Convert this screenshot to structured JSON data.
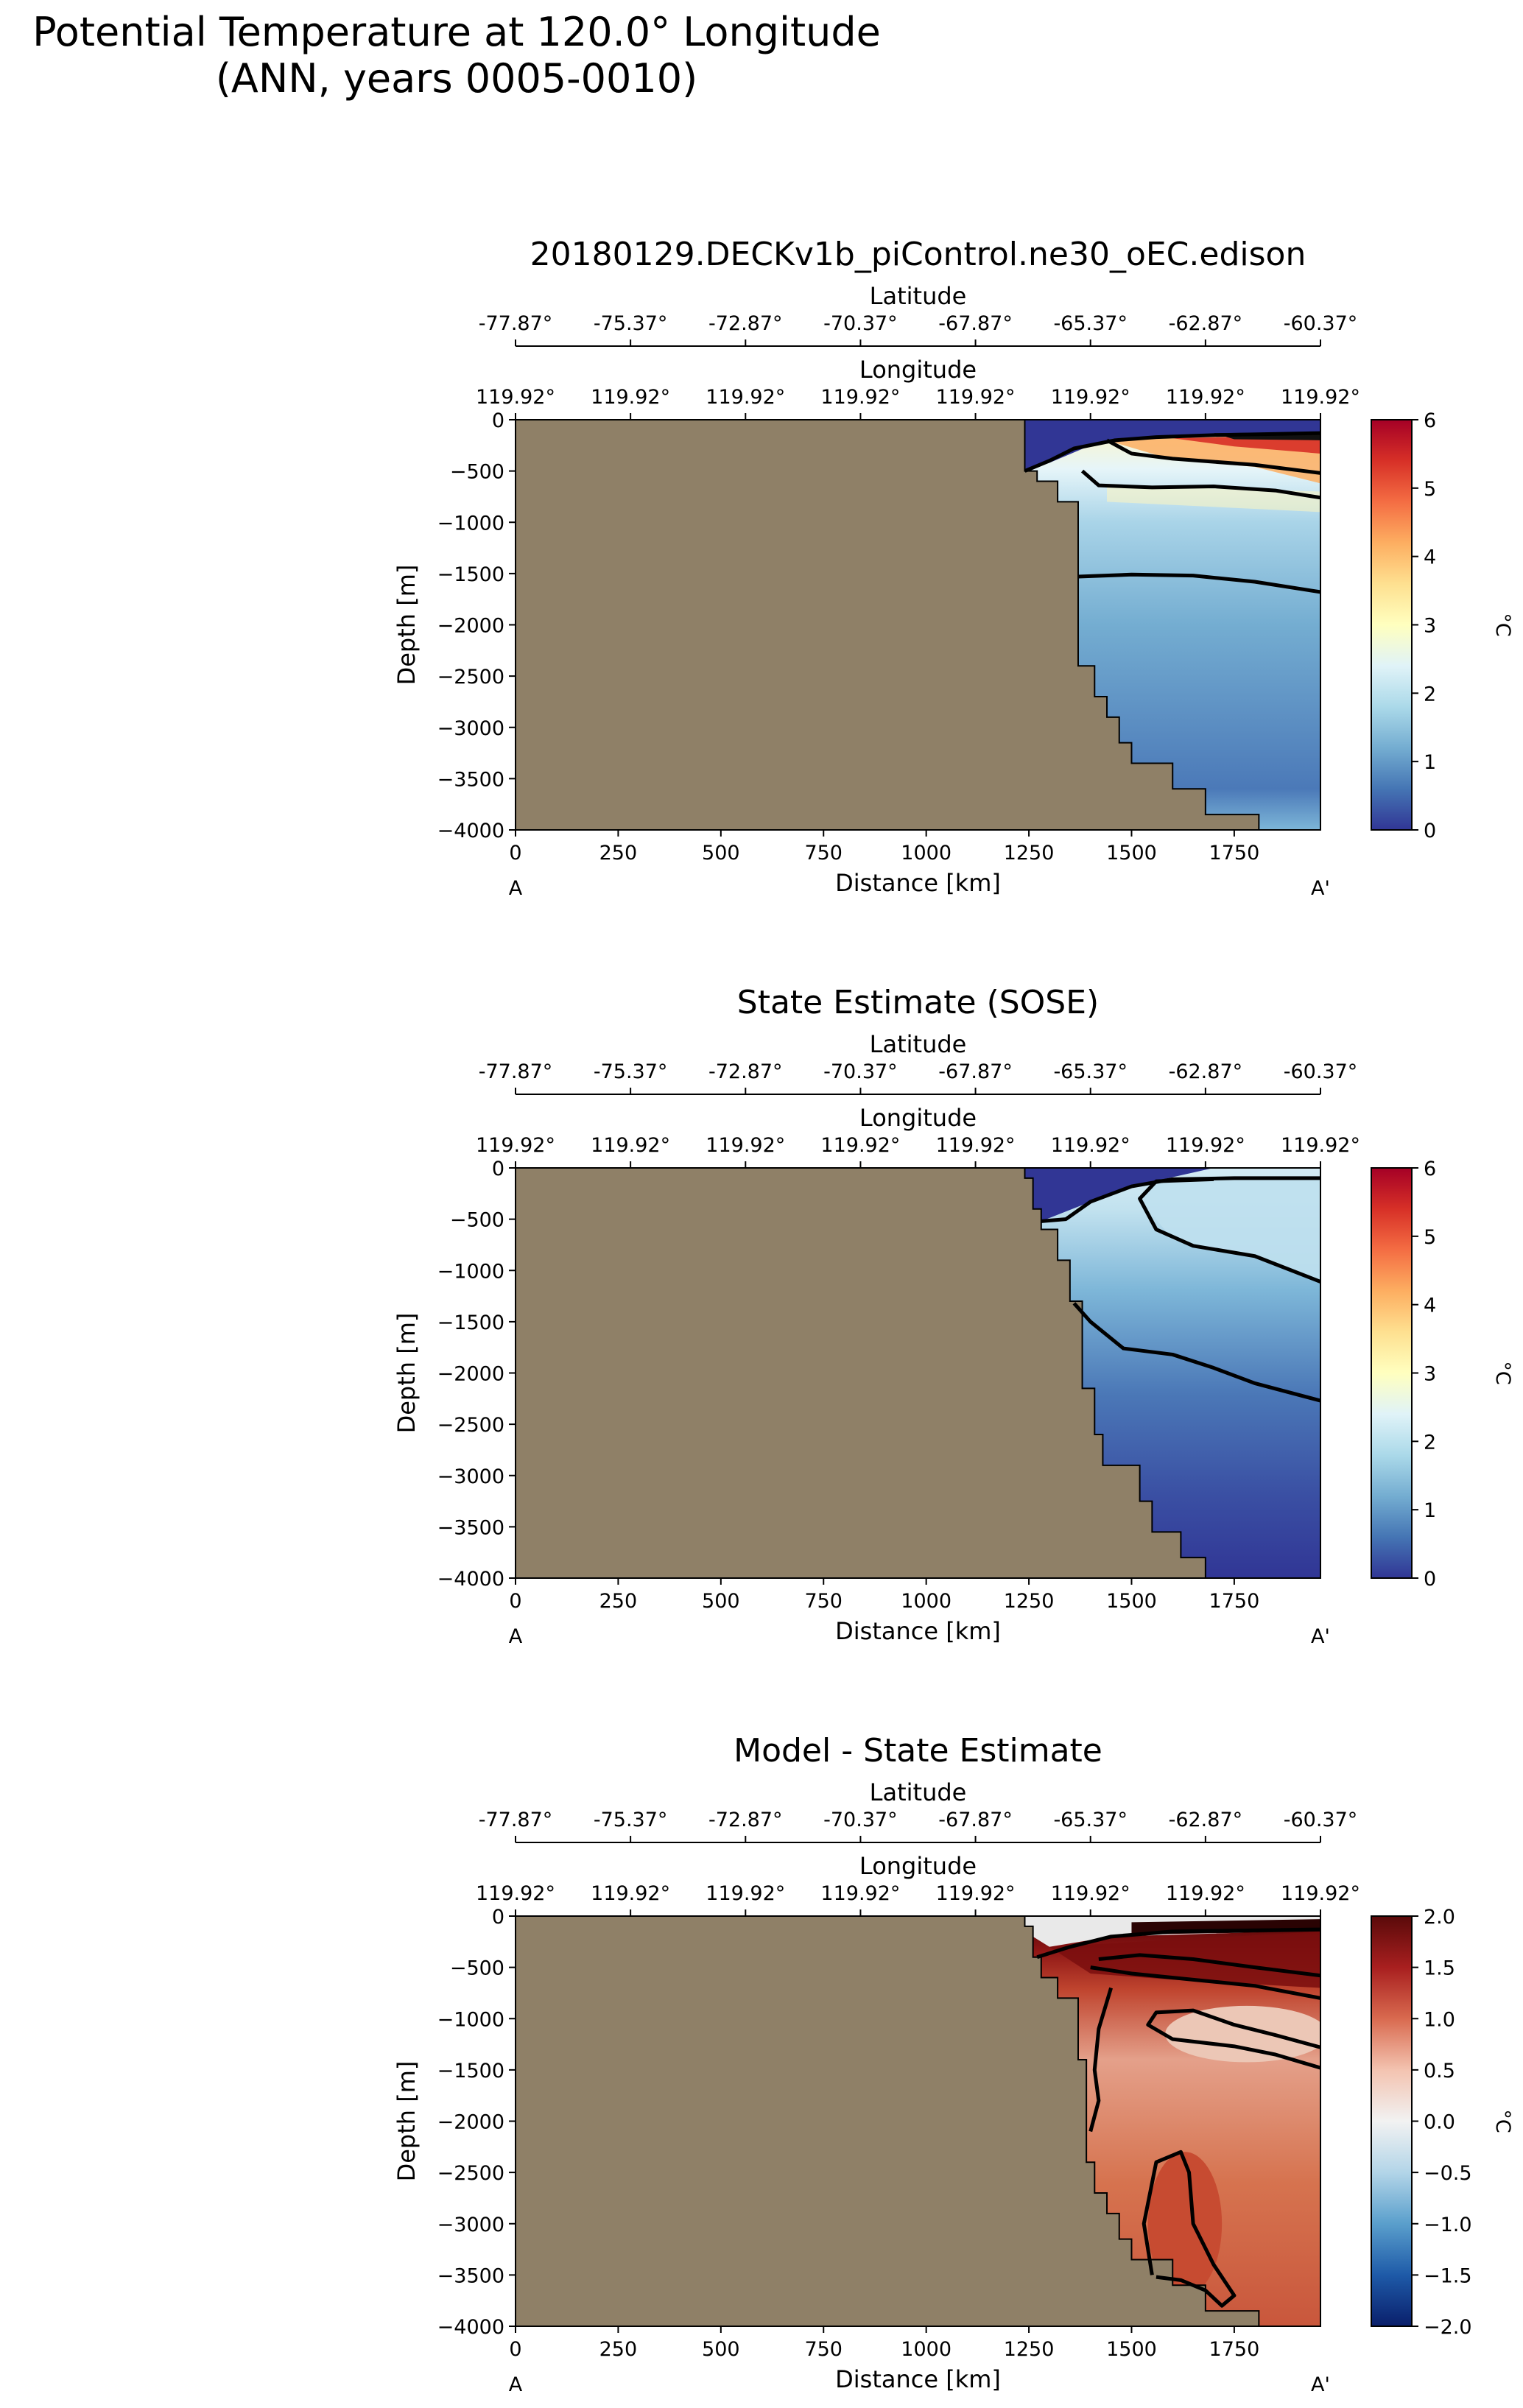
{
  "figure": {
    "title_line1": "Potential Temperature at 120.0° Longitude",
    "title_line2": "(ANN, years 0005-0010)"
  },
  "colors": {
    "land": "#8f8067",
    "contour": "#000000",
    "seq_cmap": [
      "#313695",
      "#4575b4",
      "#74add1",
      "#abd9e9",
      "#e0f3f8",
      "#ffffbf",
      "#fee090",
      "#fdae61",
      "#f46d43",
      "#d73027",
      "#a50026"
    ],
    "div_cmap": [
      "#0a1f6b",
      "#1e5aa8",
      "#5a9fcc",
      "#b3d5e8",
      "#f2f2f2",
      "#f3c3b0",
      "#d96a4f",
      "#a81f1f",
      "#5a0a0a"
    ]
  },
  "chart_data": [
    {
      "type": "heatmap",
      "panel": "model",
      "title": "20180129.DECKv1b_piControl.ne30_oEC.edison",
      "xlabel": "Distance [km]",
      "ylabel": "Depth [m]",
      "top_axis_label_lat": "Latitude",
      "top_axis_label_lon": "Longitude",
      "xlim": [
        0,
        1960
      ],
      "ylim": [
        -4000,
        0
      ],
      "xticks": [
        "0",
        "250",
        "500",
        "750",
        "1000",
        "1250",
        "1500",
        "1750"
      ],
      "yticks": [
        "0",
        "−500",
        "−1000",
        "−1500",
        "−2000",
        "−2500",
        "−3000",
        "−3500",
        "−4000"
      ],
      "lat_ticks": [
        "-77.87°",
        "-75.37°",
        "-72.87°",
        "-70.37°",
        "-67.87°",
        "-65.37°",
        "-62.87°",
        "-60.37°"
      ],
      "lon_ticks": [
        "119.92°",
        "119.92°",
        "119.92°",
        "119.92°",
        "119.92°",
        "119.92°",
        "119.92°",
        "119.92°"
      ],
      "endpoint_left": "A",
      "endpoint_right": "A'",
      "colorbar": {
        "label": "°C",
        "range": [
          0,
          6
        ],
        "ticks": [
          "0",
          "1",
          "2",
          "3",
          "4",
          "5",
          "6"
        ],
        "cmap": "seq"
      },
      "bathymetry_km_m": [
        [
          1240,
          0
        ],
        [
          1240,
          -500
        ],
        [
          1270,
          -500
        ],
        [
          1270,
          -600
        ],
        [
          1320,
          -600
        ],
        [
          1320,
          -800
        ],
        [
          1370,
          -800
        ],
        [
          1370,
          -2400
        ],
        [
          1410,
          -2400
        ],
        [
          1410,
          -2700
        ],
        [
          1440,
          -2700
        ],
        [
          1440,
          -2900
        ],
        [
          1470,
          -2900
        ],
        [
          1470,
          -3150
        ],
        [
          1500,
          -3150
        ],
        [
          1500,
          -3350
        ],
        [
          1600,
          -3350
        ],
        [
          1600,
          -3600
        ],
        [
          1680,
          -3600
        ],
        [
          1680,
          -3850
        ],
        [
          1810,
          -3850
        ],
        [
          1810,
          -4000
        ]
      ],
      "contour_depths_m": [
        [
          [
            1240,
            -500
          ],
          [
            1300,
            -400
          ],
          [
            1360,
            -280
          ],
          [
            1460,
            -200
          ],
          [
            1560,
            -170
          ],
          [
            1700,
            -150
          ],
          [
            1960,
            -130
          ]
        ],
        [
          [
            1440,
            -200
          ],
          [
            1500,
            -330
          ],
          [
            1600,
            -380
          ],
          [
            1800,
            -440
          ],
          [
            1960,
            -520
          ]
        ],
        [
          [
            1380,
            -500
          ],
          [
            1420,
            -640
          ],
          [
            1550,
            -660
          ],
          [
            1700,
            -650
          ],
          [
            1850,
            -690
          ],
          [
            1960,
            -760
          ]
        ],
        [
          [
            1370,
            -1530
          ],
          [
            1500,
            -1510
          ],
          [
            1650,
            -1520
          ],
          [
            1800,
            -1580
          ],
          [
            1960,
            -1680
          ]
        ]
      ],
      "field_notes": "Cold (~0-0.5 °C) surface layer above ~400 m near shelf; warm 3-6 °C core at 150-600 m offshore; ~2 °C at 1000 m; ~1 °C deep"
    },
    {
      "type": "heatmap",
      "panel": "obs",
      "title": "State Estimate (SOSE)",
      "xlabel": "Distance [km]",
      "ylabel": "Depth [m]",
      "top_axis_label_lat": "Latitude",
      "top_axis_label_lon": "Longitude",
      "xlim": [
        0,
        1960
      ],
      "ylim": [
        -4000,
        0
      ],
      "xticks": [
        "0",
        "250",
        "500",
        "750",
        "1000",
        "1250",
        "1500",
        "1750"
      ],
      "yticks": [
        "0",
        "−500",
        "−1000",
        "−1500",
        "−2000",
        "−2500",
        "−3000",
        "−3500",
        "−4000"
      ],
      "lat_ticks": [
        "-77.87°",
        "-75.37°",
        "-72.87°",
        "-70.37°",
        "-67.87°",
        "-65.37°",
        "-62.87°",
        "-60.37°"
      ],
      "lon_ticks": [
        "119.92°",
        "119.92°",
        "119.92°",
        "119.92°",
        "119.92°",
        "119.92°",
        "119.92°",
        "119.92°"
      ],
      "endpoint_left": "A",
      "endpoint_right": "A'",
      "colorbar": {
        "label": "°C",
        "range": [
          0,
          6
        ],
        "ticks": [
          "0",
          "1",
          "2",
          "3",
          "4",
          "5",
          "6"
        ],
        "cmap": "seq"
      },
      "bathymetry_km_m": [
        [
          1240,
          0
        ],
        [
          1240,
          -100
        ],
        [
          1260,
          -100
        ],
        [
          1260,
          -400
        ],
        [
          1280,
          -400
        ],
        [
          1280,
          -600
        ],
        [
          1320,
          -600
        ],
        [
          1320,
          -900
        ],
        [
          1350,
          -900
        ],
        [
          1350,
          -1300
        ],
        [
          1380,
          -1300
        ],
        [
          1380,
          -2150
        ],
        [
          1410,
          -2150
        ],
        [
          1410,
          -2600
        ],
        [
          1430,
          -2600
        ],
        [
          1430,
          -2900
        ],
        [
          1520,
          -2900
        ],
        [
          1520,
          -3250
        ],
        [
          1550,
          -3250
        ],
        [
          1550,
          -3550
        ],
        [
          1620,
          -3550
        ],
        [
          1620,
          -3800
        ],
        [
          1680,
          -3800
        ],
        [
          1680,
          -4000
        ]
      ],
      "contour_depths_m": [
        [
          [
            1280,
            -520
          ],
          [
            1340,
            -500
          ],
          [
            1400,
            -330
          ],
          [
            1500,
            -180
          ],
          [
            1600,
            -110
          ],
          [
            1750,
            -100
          ],
          [
            1960,
            -100
          ]
        ],
        [
          [
            1700,
            -110
          ],
          [
            1560,
            -130
          ],
          [
            1520,
            -300
          ],
          [
            1560,
            -600
          ],
          [
            1650,
            -760
          ],
          [
            1800,
            -860
          ],
          [
            1960,
            -1110
          ]
        ],
        [
          [
            1360,
            -1320
          ],
          [
            1400,
            -1500
          ],
          [
            1480,
            -1760
          ],
          [
            1600,
            -1820
          ],
          [
            1700,
            -1950
          ],
          [
            1800,
            -2100
          ],
          [
            1960,
            -2270
          ]
        ]
      ],
      "field_notes": "Cold shelf water (<0.5 °C) near slope; ~1.5-2 °C core 100-800 m offshore; cooling below to ~0 °C at depth"
    },
    {
      "type": "heatmap",
      "panel": "diff",
      "title": "Model - State Estimate",
      "xlabel": "Distance [km]",
      "ylabel": "Depth [m]",
      "top_axis_label_lat": "Latitude",
      "top_axis_label_lon": "Longitude",
      "xlim": [
        0,
        1960
      ],
      "ylim": [
        -4000,
        0
      ],
      "xticks": [
        "0",
        "250",
        "500",
        "750",
        "1000",
        "1250",
        "1500",
        "1750"
      ],
      "yticks": [
        "0",
        "−500",
        "−1000",
        "−1500",
        "−2000",
        "−2500",
        "−3000",
        "−3500",
        "−4000"
      ],
      "lat_ticks": [
        "-77.87°",
        "-75.37°",
        "-72.87°",
        "-70.37°",
        "-67.87°",
        "-65.37°",
        "-62.87°",
        "-60.37°"
      ],
      "lon_ticks": [
        "119.92°",
        "119.92°",
        "119.92°",
        "119.92°",
        "119.92°",
        "119.92°",
        "119.92°",
        "119.92°"
      ],
      "endpoint_left": "A",
      "endpoint_right": "A'",
      "colorbar": {
        "label": "°C",
        "range": [
          -2,
          2
        ],
        "ticks": [
          "2.0",
          "1.5",
          "1.0",
          "0.5",
          "0.0",
          "−0.5",
          "−1.0",
          "−1.5",
          "−2.0"
        ],
        "cmap": "div"
      },
      "bathymetry_km_m": [
        [
          1240,
          0
        ],
        [
          1240,
          -100
        ],
        [
          1260,
          -100
        ],
        [
          1260,
          -400
        ],
        [
          1280,
          -400
        ],
        [
          1280,
          -600
        ],
        [
          1320,
          -600
        ],
        [
          1320,
          -800
        ],
        [
          1370,
          -800
        ],
        [
          1370,
          -1400
        ],
        [
          1390,
          -1400
        ],
        [
          1390,
          -2400
        ],
        [
          1410,
          -2400
        ],
        [
          1410,
          -2700
        ],
        [
          1440,
          -2700
        ],
        [
          1440,
          -2900
        ],
        [
          1470,
          -2900
        ],
        [
          1470,
          -3150
        ],
        [
          1500,
          -3150
        ],
        [
          1500,
          -3350
        ],
        [
          1600,
          -3350
        ],
        [
          1600,
          -3600
        ],
        [
          1680,
          -3600
        ],
        [
          1680,
          -3850
        ],
        [
          1810,
          -3850
        ],
        [
          1810,
          -4000
        ]
      ],
      "contour_depths_m": [
        [
          [
            1270,
            -400
          ],
          [
            1350,
            -300
          ],
          [
            1450,
            -200
          ],
          [
            1600,
            -150
          ],
          [
            1960,
            -130
          ]
        ],
        [
          [
            1420,
            -420
          ],
          [
            1520,
            -380
          ],
          [
            1650,
            -420
          ],
          [
            1800,
            -500
          ],
          [
            1960,
            -580
          ]
        ],
        [
          [
            1400,
            -500
          ],
          [
            1500,
            -560
          ],
          [
            1650,
            -620
          ],
          [
            1800,
            -680
          ],
          [
            1960,
            -800
          ]
        ],
        [
          [
            1960,
            -1280
          ],
          [
            1850,
            -1160
          ],
          [
            1750,
            -1060
          ],
          [
            1650,
            -920
          ],
          [
            1560,
            -940
          ],
          [
            1540,
            -1060
          ],
          [
            1600,
            -1200
          ],
          [
            1750,
            -1270
          ],
          [
            1850,
            -1350
          ],
          [
            1960,
            -1480
          ]
        ],
        [
          [
            1450,
            -700
          ],
          [
            1420,
            -1100
          ],
          [
            1410,
            -1500
          ],
          [
            1420,
            -1800
          ],
          [
            1400,
            -2100
          ]
        ],
        [
          [
            1550,
            -3500
          ],
          [
            1530,
            -3000
          ],
          [
            1560,
            -2400
          ],
          [
            1620,
            -2300
          ],
          [
            1640,
            -2500
          ],
          [
            1650,
            -3000
          ],
          [
            1700,
            -3400
          ],
          [
            1750,
            -3700
          ],
          [
            1720,
            -3800
          ],
          [
            1680,
            -3650
          ],
          [
            1620,
            -3550
          ],
          [
            1560,
            -3520
          ]
        ]
      ],
      "field_notes": "Model warmer than SOSE nearly everywhere: ~+1.5-2 °C at 100-600 m, ~+0.3-0.7 °C mid-depth, ~+1 °C near bottom"
    }
  ]
}
